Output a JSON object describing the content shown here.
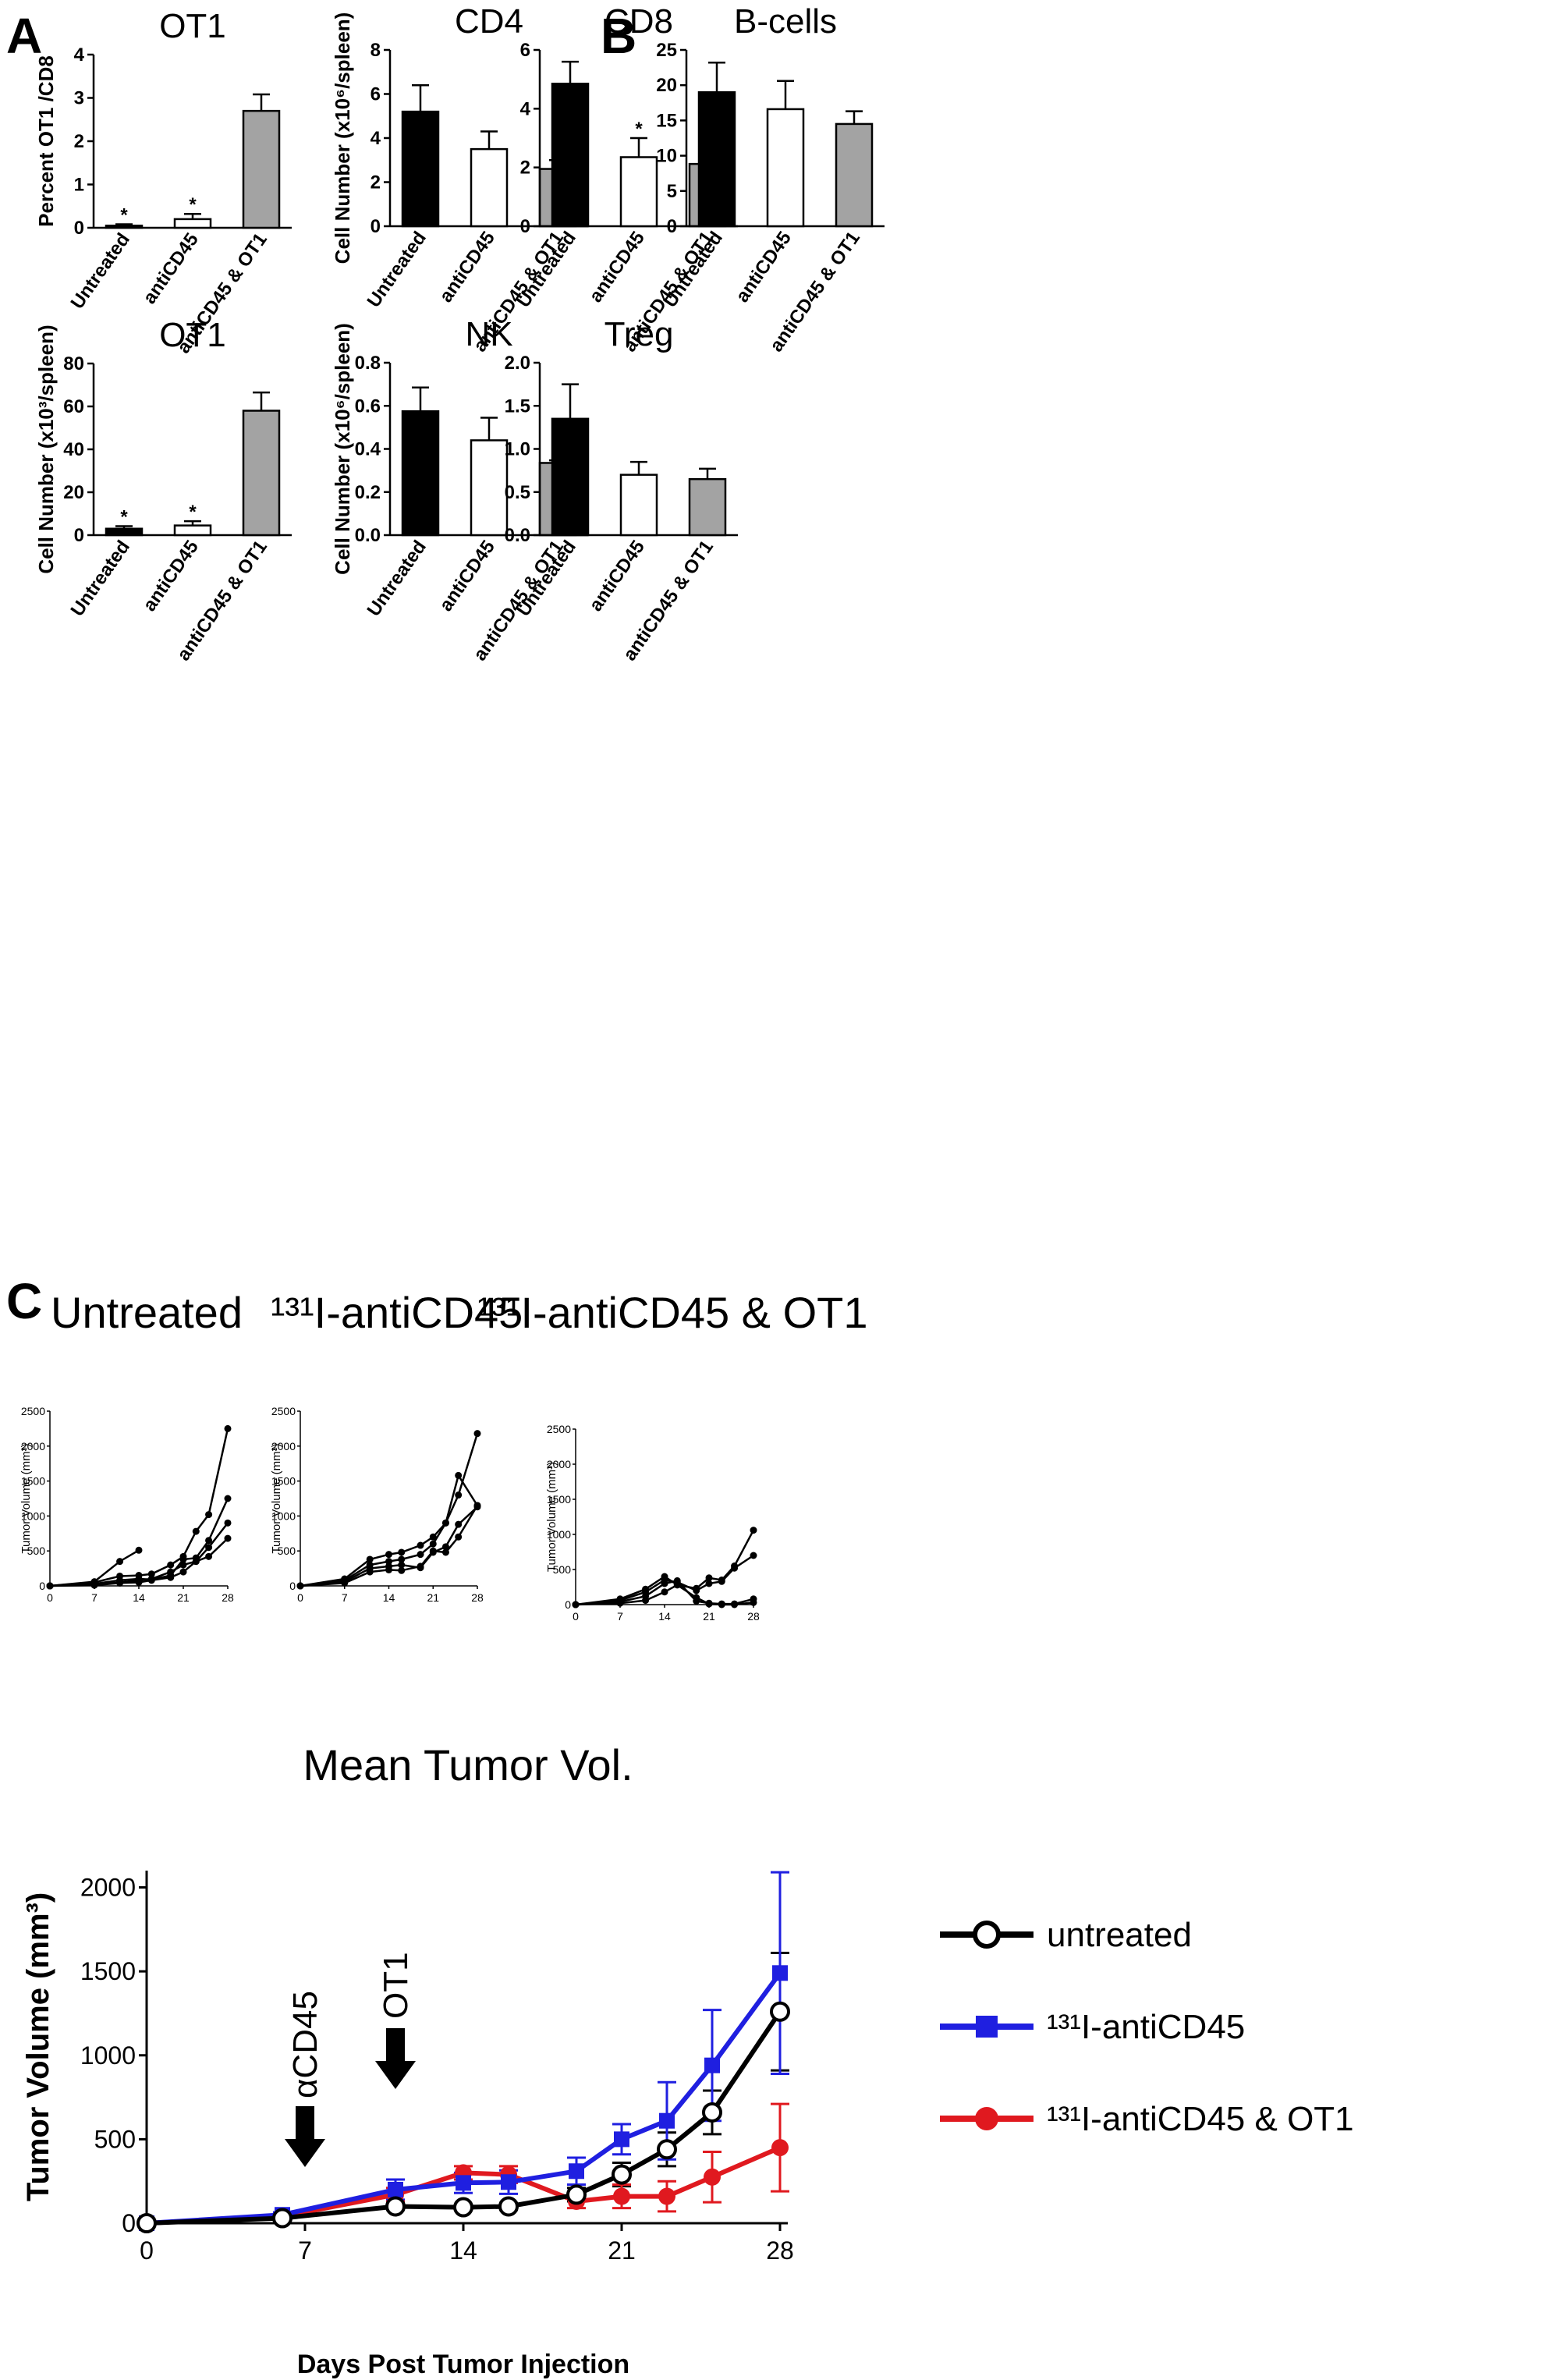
{
  "panel_labels": [
    "A",
    "B",
    "C"
  ],
  "colors": {
    "untreated": "#000000",
    "antiCD45": "#ffffff",
    "combo": "#a3a3a3",
    "line_untreated": "#000000",
    "line_antiCD45": "#1f1fe0",
    "line_combo": "#e0191f"
  },
  "chart_data": [
    {
      "id": "ot1_percent",
      "type": "bar",
      "title": "OT1",
      "ylabel": "Percent OT1 /CD8",
      "categories": [
        "Untreated",
        "antiCD45",
        "antiCD45 & OT1"
      ],
      "values": [
        0.05,
        0.2,
        2.7
      ],
      "errors": [
        0.03,
        0.12,
        0.38
      ],
      "significance": [
        "*",
        "*",
        ""
      ],
      "ylim": [
        0,
        4
      ],
      "yticks": [
        "0",
        "1",
        "2",
        "3",
        "4"
      ]
    },
    {
      "id": "cd4",
      "type": "bar",
      "title": "CD4",
      "ylabel": "Cell Number (x10⁶/spleen)",
      "categories": [
        "Untreated",
        "antiCD45",
        "antiCD45 & OT1"
      ],
      "values": [
        5.2,
        3.5,
        2.6
      ],
      "errors": [
        1.2,
        0.8,
        0.4
      ],
      "significance": [
        "",
        "",
        ""
      ],
      "ylim": [
        0,
        8
      ],
      "yticks": [
        "0",
        "2",
        "4",
        "6",
        "8"
      ]
    },
    {
      "id": "cd8",
      "type": "bar",
      "title": "CD8",
      "ylabel": "",
      "categories": [
        "Untreated",
        "antiCD45",
        "antiCD45 & OT1"
      ],
      "values": [
        4.85,
        2.35,
        2.12
      ],
      "errors": [
        0.75,
        0.65,
        0.1
      ],
      "significance": [
        "",
        "*",
        "*"
      ],
      "ylim": [
        0,
        6
      ],
      "yticks": [
        "0",
        "2",
        "4",
        "6"
      ]
    },
    {
      "id": "bcells",
      "type": "bar",
      "title": "B-cells",
      "ylabel": "",
      "categories": [
        "Untreated",
        "antiCD45",
        "antiCD45 & OT1"
      ],
      "values": [
        19,
        16.6,
        14.5
      ],
      "errors": [
        4.2,
        4.0,
        1.8
      ],
      "significance": [
        "",
        "",
        ""
      ],
      "ylim": [
        0,
        25
      ],
      "yticks": [
        "0",
        "5",
        "10",
        "15",
        "20",
        "25"
      ]
    },
    {
      "id": "ot1_number",
      "type": "bar",
      "title": "OT1",
      "ylabel": "Cell Number (x10³/spleen)",
      "categories": [
        "Untreated",
        "antiCD45",
        "antiCD45 & OT1"
      ],
      "values": [
        3,
        4.5,
        58
      ],
      "errors": [
        1.2,
        2.0,
        8.5
      ],
      "significance": [
        "*",
        "*",
        ""
      ],
      "ylim": [
        0,
        80
      ],
      "yticks": [
        "0",
        "20",
        "40",
        "60",
        "80"
      ]
    },
    {
      "id": "nk",
      "type": "bar",
      "title": "NK",
      "ylabel": "Cell Number (x10⁶/spleen)",
      "categories": [
        "Untreated",
        "antiCD45",
        "antiCD45 & OT1"
      ],
      "values": [
        0.575,
        0.44,
        0.335
      ],
      "errors": [
        0.11,
        0.105,
        0.012
      ],
      "significance": [
        "",
        "",
        ""
      ],
      "ylim": [
        0,
        0.8
      ],
      "yticks": [
        "0.0",
        "0.2",
        "0.4",
        "0.6",
        "0.8"
      ]
    },
    {
      "id": "treg",
      "type": "bar",
      "title": "Treg",
      "ylabel": "",
      "categories": [
        "Untreated",
        "antiCD45",
        "antiCD45 & OT1"
      ],
      "values": [
        1.35,
        0.7,
        0.65
      ],
      "errors": [
        0.4,
        0.15,
        0.12
      ],
      "significance": [
        "",
        "",
        ""
      ],
      "ylim": [
        0,
        2
      ],
      "yticks": [
        "0.0",
        "0.5",
        "1.0",
        "1.5",
        "2.0"
      ]
    },
    {
      "id": "ind_untreated",
      "type": "line",
      "title": "Untreated",
      "ylabel": "Tumor Volume (mm³)",
      "xlim": [
        0,
        28
      ],
      "ylim": [
        0,
        2500
      ],
      "xticks": [
        "0",
        "7",
        "14",
        "21",
        "28"
      ],
      "yticks": [
        "0",
        "500",
        "1000",
        "1500",
        "2000",
        "2500"
      ],
      "series": [
        {
          "x": [
            0,
            7,
            11,
            14
          ],
          "y": [
            0,
            60,
            350,
            510
          ]
        },
        {
          "x": [
            0,
            7,
            11,
            14,
            16,
            19,
            21,
            23,
            25,
            28
          ],
          "y": [
            0,
            50,
            140,
            150,
            170,
            300,
            420,
            780,
            1020,
            2250
          ]
        },
        {
          "x": [
            0,
            7,
            11,
            14,
            16,
            19,
            21,
            23,
            25,
            28
          ],
          "y": [
            0,
            30,
            80,
            100,
            90,
            150,
            380,
            400,
            650,
            1250
          ]
        },
        {
          "x": [
            0,
            7,
            11,
            14,
            16,
            19,
            21,
            23,
            25,
            28
          ],
          "y": [
            0,
            20,
            50,
            80,
            100,
            200,
            300,
            350,
            550,
            900
          ]
        },
        {
          "x": [
            0,
            7,
            11,
            14,
            16,
            19,
            21,
            23,
            25,
            28
          ],
          "y": [
            0,
            10,
            40,
            50,
            80,
            120,
            200,
            350,
            420,
            680
          ]
        }
      ]
    },
    {
      "id": "ind_antiCD45",
      "type": "line",
      "title": "¹³¹I-antiCD45",
      "ylabel": "Tumor Volume (mm³)",
      "xlim": [
        0,
        28
      ],
      "ylim": [
        0,
        2500
      ],
      "xticks": [
        "0",
        "7",
        "14",
        "21",
        "28"
      ],
      "yticks": [
        "0",
        "500",
        "1000",
        "1500",
        "2000",
        "2500"
      ],
      "series": [
        {
          "x": [
            0,
            7,
            11,
            14,
            16,
            19,
            21,
            23,
            25,
            28
          ],
          "y": [
            0,
            100,
            380,
            450,
            480,
            580,
            700,
            900,
            1580,
            1150
          ]
        },
        {
          "x": [
            0,
            7,
            11,
            14,
            16,
            19,
            21,
            23,
            25,
            28
          ],
          "y": [
            0,
            80,
            300,
            350,
            380,
            450,
            600,
            900,
            1300,
            2180
          ]
        },
        {
          "x": [
            0,
            7,
            11,
            14,
            16,
            19,
            21,
            23,
            25,
            28
          ],
          "y": [
            0,
            60,
            250,
            280,
            300,
            260,
            480,
            560,
            880,
            1130
          ]
        },
        {
          "x": [
            0,
            7,
            11,
            14,
            16,
            19,
            21,
            23,
            25,
            28
          ],
          "y": [
            0,
            40,
            200,
            230,
            220,
            280,
            500,
            480,
            700,
            1150
          ]
        }
      ]
    },
    {
      "id": "ind_combo",
      "type": "line",
      "title": "¹³¹I-antiCD45 & OT1",
      "ylabel": "Tumor Volume (mm³)",
      "xlim": [
        0,
        28
      ],
      "ylim": [
        0,
        2500
      ],
      "xticks": [
        "0",
        "7",
        "14",
        "21",
        "28"
      ],
      "yticks": [
        "0",
        "500",
        "1000",
        "1500",
        "2000",
        "2500"
      ],
      "series": [
        {
          "x": [
            0,
            7,
            11,
            14,
            16,
            19,
            21,
            23,
            25,
            28
          ],
          "y": [
            0,
            80,
            220,
            400,
            280,
            230,
            380,
            350,
            550,
            1060
          ]
        },
        {
          "x": [
            0,
            7,
            11,
            14,
            16,
            19,
            21,
            23,
            25,
            28
          ],
          "y": [
            0,
            60,
            180,
            350,
            320,
            200,
            300,
            330,
            520,
            700
          ]
        },
        {
          "x": [
            0,
            7,
            11,
            14,
            16,
            19,
            21,
            23,
            25,
            28
          ],
          "y": [
            0,
            40,
            120,
            300,
            340,
            50,
            20,
            10,
            10,
            80
          ]
        },
        {
          "x": [
            0,
            7,
            11,
            14,
            16,
            19,
            21,
            23,
            25,
            28
          ],
          "y": [
            0,
            20,
            60,
            180,
            280,
            100,
            10,
            0,
            0,
            30
          ]
        }
      ]
    },
    {
      "id": "mean_tumor",
      "type": "line",
      "title": "Mean Tumor Vol.",
      "xlabel": "Days Post Tumor Injection",
      "ylabel": "Tumor Volume (mm³)",
      "xlim": [
        0,
        28
      ],
      "ylim": [
        0,
        2100
      ],
      "xticks": [
        "0",
        "7",
        "14",
        "21",
        "28"
      ],
      "yticks": [
        "0",
        "500",
        "1000",
        "1500",
        "2000"
      ],
      "annotations": [
        {
          "text": "αCD45",
          "x": 7
        },
        {
          "text": "OT1",
          "x": 11
        }
      ],
      "legend_position": "right",
      "series": [
        {
          "name": "untreated",
          "x": [
            0,
            6,
            11,
            14,
            16,
            19,
            21,
            23,
            25,
            28
          ],
          "y": [
            0,
            30,
            100,
            95,
            100,
            170,
            290,
            440,
            660,
            1260
          ],
          "err": [
            0,
            10,
            20,
            15,
            20,
            40,
            70,
            100,
            130,
            350
          ]
        },
        {
          "name": "¹³¹I-antiCD45",
          "x": [
            0,
            6,
            11,
            14,
            16,
            19,
            21,
            23,
            25,
            28
          ],
          "y": [
            0,
            50,
            200,
            240,
            245,
            310,
            500,
            610,
            940,
            1490
          ],
          "err": [
            0,
            15,
            60,
            60,
            70,
            80,
            90,
            230,
            330,
            600
          ]
        },
        {
          "name": "¹³¹I-antiCD45 & OT1",
          "x": [
            0,
            6,
            11,
            14,
            16,
            19,
            21,
            23,
            25,
            28
          ],
          "y": [
            0,
            40,
            170,
            300,
            290,
            130,
            160,
            160,
            275,
            450
          ],
          "err": [
            0,
            10,
            40,
            40,
            50,
            40,
            70,
            90,
            150,
            260
          ]
        }
      ]
    }
  ]
}
